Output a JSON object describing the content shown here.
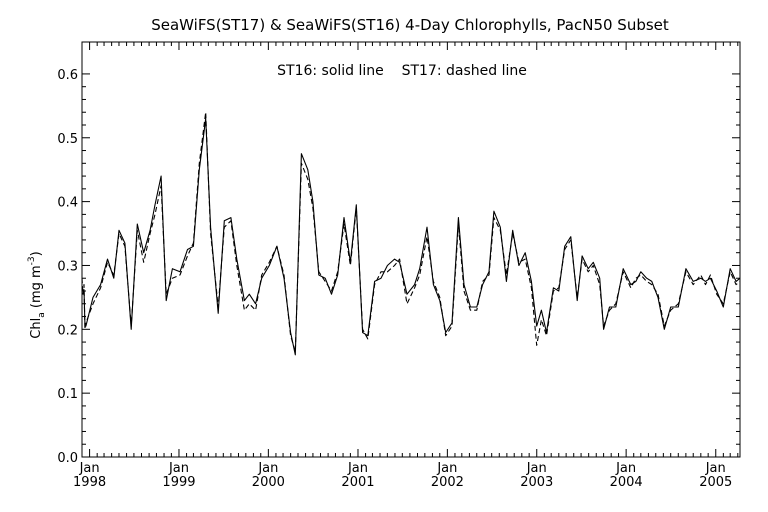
{
  "chart_data": {
    "type": "line",
    "title": "SeaWiFS(ST17) & SeaWiFS(ST16) 4-Day Chlorophylls, PacN50 Subset",
    "annotation": "ST16: solid line    ST17: dashed line",
    "ylabel": {
      "main": "Chl",
      "subscript": "a",
      "units_pre": " (mg m",
      "superscript": "-3",
      "units_post": ")"
    },
    "ylim": [
      0.0,
      0.65
    ],
    "yticks": [
      "0.0",
      "0.1",
      "0.2",
      "0.3",
      "0.4",
      "0.5",
      "0.6"
    ],
    "xlim": [
      "1997-12-01",
      "2005-04-10"
    ],
    "xtick_month": "Jan",
    "xtick_years": [
      "1998",
      "1999",
      "2000",
      "2001",
      "2002",
      "2003",
      "2004",
      "2005"
    ],
    "grid": false,
    "series": [
      {
        "name": "ST16",
        "style": "solid",
        "points": [
          [
            "1997-12-01",
            0.265
          ],
          [
            "1997-12-05",
            0.26
          ],
          [
            "1997-12-09",
            0.262
          ],
          [
            "1997-12-13",
            0.21
          ],
          [
            "1997-12-17",
            0.205
          ],
          [
            "1998-01-15",
            0.25
          ],
          [
            "1998-02-15",
            0.27
          ],
          [
            "1998-03-15",
            0.31
          ],
          [
            "1998-04-10",
            0.28
          ],
          [
            "1998-05-01",
            0.355
          ],
          [
            "1998-05-25",
            0.335
          ],
          [
            "1998-06-20",
            0.2
          ],
          [
            "1998-07-15",
            0.365
          ],
          [
            "1998-08-10",
            0.32
          ],
          [
            "1998-09-05",
            0.355
          ],
          [
            "1998-09-25",
            0.395
          ],
          [
            "1998-10-20",
            0.44
          ],
          [
            "1998-11-10",
            0.245
          ],
          [
            "1998-12-05",
            0.295
          ],
          [
            "1999-01-05",
            0.29
          ],
          [
            "1999-02-05",
            0.325
          ],
          [
            "1999-03-01",
            0.33
          ],
          [
            "1999-03-25",
            0.45
          ],
          [
            "1999-04-20",
            0.53
          ],
          [
            "1999-05-10",
            0.36
          ],
          [
            "1999-06-10",
            0.225
          ],
          [
            "1999-07-05",
            0.37
          ],
          [
            "1999-08-01",
            0.375
          ],
          [
            "1999-08-25",
            0.31
          ],
          [
            "1999-09-25",
            0.245
          ],
          [
            "1999-10-15",
            0.255
          ],
          [
            "1999-11-10",
            0.24
          ],
          [
            "1999-12-05",
            0.28
          ],
          [
            "2000-01-05",
            0.3
          ],
          [
            "2000-02-05",
            0.33
          ],
          [
            "2000-03-05",
            0.28
          ],
          [
            "2000-04-01",
            0.195
          ],
          [
            "2000-04-20",
            0.16
          ],
          [
            "2000-05-15",
            0.475
          ],
          [
            "2000-06-10",
            0.45
          ],
          [
            "2000-07-01",
            0.4
          ],
          [
            "2000-07-25",
            0.285
          ],
          [
            "2000-08-20",
            0.28
          ],
          [
            "2000-09-15",
            0.255
          ],
          [
            "2000-10-10",
            0.285
          ],
          [
            "2000-11-05",
            0.375
          ],
          [
            "2000-12-01",
            0.305
          ],
          [
            "2000-12-25",
            0.395
          ],
          [
            "2001-01-20",
            0.195
          ],
          [
            "2001-02-10",
            0.19
          ],
          [
            "2001-03-10",
            0.275
          ],
          [
            "2001-04-05",
            0.28
          ],
          [
            "2001-05-01",
            0.3
          ],
          [
            "2001-05-30",
            0.31
          ],
          [
            "2001-06-20",
            0.305
          ],
          [
            "2001-07-20",
            0.255
          ],
          [
            "2001-08-20",
            0.27
          ],
          [
            "2001-09-10",
            0.295
          ],
          [
            "2001-10-10",
            0.36
          ],
          [
            "2001-11-05",
            0.27
          ],
          [
            "2001-12-01",
            0.245
          ],
          [
            "2001-12-25",
            0.195
          ],
          [
            "2002-01-20",
            0.21
          ],
          [
            "2002-02-15",
            0.375
          ],
          [
            "2002-03-10",
            0.27
          ],
          [
            "2002-04-05",
            0.235
          ],
          [
            "2002-05-01",
            0.235
          ],
          [
            "2002-05-25",
            0.27
          ],
          [
            "2002-06-20",
            0.29
          ],
          [
            "2002-07-10",
            0.385
          ],
          [
            "2002-08-05",
            0.36
          ],
          [
            "2002-08-30",
            0.275
          ],
          [
            "2002-09-25",
            0.355
          ],
          [
            "2002-10-20",
            0.3
          ],
          [
            "2002-11-15",
            0.32
          ],
          [
            "2002-12-10",
            0.275
          ],
          [
            "2003-01-01",
            0.205
          ],
          [
            "2003-01-20",
            0.23
          ],
          [
            "2003-02-10",
            0.195
          ],
          [
            "2003-03-10",
            0.265
          ],
          [
            "2003-04-01",
            0.26
          ],
          [
            "2003-04-25",
            0.33
          ],
          [
            "2003-05-20",
            0.345
          ],
          [
            "2003-06-15",
            0.245
          ],
          [
            "2003-07-05",
            0.315
          ],
          [
            "2003-07-30",
            0.295
          ],
          [
            "2003-08-20",
            0.305
          ],
          [
            "2003-09-15",
            0.28
          ],
          [
            "2003-10-01",
            0.2
          ],
          [
            "2003-10-25",
            0.235
          ],
          [
            "2003-11-20",
            0.235
          ],
          [
            "2003-12-20",
            0.295
          ],
          [
            "2004-01-20",
            0.27
          ],
          [
            "2004-02-10",
            0.275
          ],
          [
            "2004-03-01",
            0.29
          ],
          [
            "2004-03-25",
            0.28
          ],
          [
            "2004-04-15",
            0.275
          ],
          [
            "2004-05-10",
            0.25
          ],
          [
            "2004-06-05",
            0.2
          ],
          [
            "2004-07-01",
            0.235
          ],
          [
            "2004-08-01",
            0.235
          ],
          [
            "2004-09-01",
            0.295
          ],
          [
            "2004-10-01",
            0.275
          ],
          [
            "2004-11-01",
            0.28
          ],
          [
            "2004-11-20",
            0.275
          ],
          [
            "2004-12-10",
            0.28
          ],
          [
            "2005-01-05",
            0.26
          ],
          [
            "2005-02-01",
            0.235
          ],
          [
            "2005-03-01",
            0.295
          ],
          [
            "2005-03-25",
            0.275
          ],
          [
            "2005-04-10",
            0.28
          ]
        ]
      },
      {
        "name": "ST17",
        "style": "dashed",
        "points": [
          [
            "1997-12-01",
            0.28
          ],
          [
            "1997-12-05",
            0.255
          ],
          [
            "1997-12-09",
            0.27
          ],
          [
            "1997-12-13",
            0.2
          ],
          [
            "1997-12-17",
            0.21
          ],
          [
            "1998-01-15",
            0.24
          ],
          [
            "1998-02-15",
            0.265
          ],
          [
            "1998-03-15",
            0.305
          ],
          [
            "1998-04-10",
            0.285
          ],
          [
            "1998-05-01",
            0.35
          ],
          [
            "1998-05-25",
            0.33
          ],
          [
            "1998-06-20",
            0.205
          ],
          [
            "1998-07-15",
            0.355
          ],
          [
            "1998-08-10",
            0.305
          ],
          [
            "1998-09-05",
            0.35
          ],
          [
            "1998-09-25",
            0.38
          ],
          [
            "1998-10-20",
            0.425
          ],
          [
            "1998-11-10",
            0.255
          ],
          [
            "1998-12-05",
            0.28
          ],
          [
            "1999-01-05",
            0.285
          ],
          [
            "1999-02-05",
            0.315
          ],
          [
            "1999-03-01",
            0.335
          ],
          [
            "1999-03-25",
            0.46
          ],
          [
            "1999-04-20",
            0.54
          ],
          [
            "1999-05-10",
            0.35
          ],
          [
            "1999-06-10",
            0.235
          ],
          [
            "1999-07-05",
            0.36
          ],
          [
            "1999-08-01",
            0.37
          ],
          [
            "1999-08-25",
            0.3
          ],
          [
            "1999-09-25",
            0.23
          ],
          [
            "1999-10-15",
            0.24
          ],
          [
            "1999-11-10",
            0.23
          ],
          [
            "1999-12-05",
            0.285
          ],
          [
            "2000-01-05",
            0.305
          ],
          [
            "2000-02-05",
            0.33
          ],
          [
            "2000-03-05",
            0.285
          ],
          [
            "2000-04-01",
            0.19
          ],
          [
            "2000-04-20",
            0.165
          ],
          [
            "2000-05-15",
            0.46
          ],
          [
            "2000-06-10",
            0.435
          ],
          [
            "2000-07-01",
            0.39
          ],
          [
            "2000-07-25",
            0.29
          ],
          [
            "2000-08-20",
            0.275
          ],
          [
            "2000-09-15",
            0.26
          ],
          [
            "2000-10-10",
            0.29
          ],
          [
            "2000-11-05",
            0.365
          ],
          [
            "2000-12-01",
            0.3
          ],
          [
            "2000-12-25",
            0.39
          ],
          [
            "2001-01-20",
            0.2
          ],
          [
            "2001-02-10",
            0.185
          ],
          [
            "2001-03-10",
            0.27
          ],
          [
            "2001-04-05",
            0.29
          ],
          [
            "2001-05-01",
            0.29
          ],
          [
            "2001-05-30",
            0.3
          ],
          [
            "2001-06-20",
            0.31
          ],
          [
            "2001-07-20",
            0.24
          ],
          [
            "2001-08-20",
            0.265
          ],
          [
            "2001-09-10",
            0.285
          ],
          [
            "2001-10-10",
            0.345
          ],
          [
            "2001-11-05",
            0.275
          ],
          [
            "2001-12-01",
            0.25
          ],
          [
            "2001-12-25",
            0.19
          ],
          [
            "2002-01-20",
            0.205
          ],
          [
            "2002-02-15",
            0.365
          ],
          [
            "2002-03-10",
            0.26
          ],
          [
            "2002-04-05",
            0.23
          ],
          [
            "2002-05-01",
            0.23
          ],
          [
            "2002-05-25",
            0.275
          ],
          [
            "2002-06-20",
            0.285
          ],
          [
            "2002-07-10",
            0.375
          ],
          [
            "2002-08-05",
            0.355
          ],
          [
            "2002-08-30",
            0.285
          ],
          [
            "2002-09-25",
            0.35
          ],
          [
            "2002-10-20",
            0.305
          ],
          [
            "2002-11-15",
            0.31
          ],
          [
            "2002-12-10",
            0.265
          ],
          [
            "2003-01-01",
            0.175
          ],
          [
            "2003-01-20",
            0.215
          ],
          [
            "2003-02-10",
            0.19
          ],
          [
            "2003-03-10",
            0.26
          ],
          [
            "2003-04-01",
            0.265
          ],
          [
            "2003-04-25",
            0.325
          ],
          [
            "2003-05-20",
            0.34
          ],
          [
            "2003-06-15",
            0.25
          ],
          [
            "2003-07-05",
            0.31
          ],
          [
            "2003-07-30",
            0.29
          ],
          [
            "2003-08-20",
            0.3
          ],
          [
            "2003-09-15",
            0.27
          ],
          [
            "2003-10-01",
            0.205
          ],
          [
            "2003-10-25",
            0.23
          ],
          [
            "2003-11-20",
            0.24
          ],
          [
            "2003-12-20",
            0.29
          ],
          [
            "2004-01-20",
            0.265
          ],
          [
            "2004-02-10",
            0.28
          ],
          [
            "2004-03-01",
            0.285
          ],
          [
            "2004-03-25",
            0.275
          ],
          [
            "2004-04-15",
            0.27
          ],
          [
            "2004-05-10",
            0.255
          ],
          [
            "2004-06-05",
            0.205
          ],
          [
            "2004-07-01",
            0.23
          ],
          [
            "2004-08-01",
            0.24
          ],
          [
            "2004-09-01",
            0.29
          ],
          [
            "2004-10-01",
            0.27
          ],
          [
            "2004-11-01",
            0.285
          ],
          [
            "2004-11-20",
            0.27
          ],
          [
            "2004-12-10",
            0.285
          ],
          [
            "2005-01-05",
            0.255
          ],
          [
            "2005-02-01",
            0.24
          ],
          [
            "2005-03-01",
            0.29
          ],
          [
            "2005-03-25",
            0.27
          ],
          [
            "2005-04-10",
            0.275
          ]
        ]
      }
    ]
  }
}
